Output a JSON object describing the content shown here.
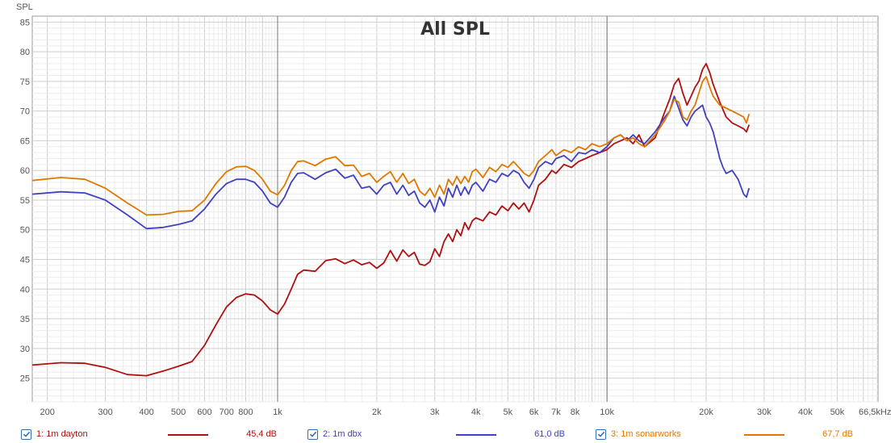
{
  "chart_data": {
    "type": "line",
    "title": "All SPL",
    "ylabel": "SPL",
    "x_unit_label": "66,5kHz",
    "x_scale": "log",
    "xlim": [
      180,
      66500
    ],
    "ylim": [
      21,
      86
    ],
    "grid": true,
    "y_ticks": [
      25,
      30,
      35,
      40,
      45,
      50,
      55,
      60,
      65,
      70,
      75,
      80,
      85
    ],
    "x_ticks": [
      {
        "v": 200,
        "label": "200"
      },
      {
        "v": 300,
        "label": "300"
      },
      {
        "v": 400,
        "label": "400"
      },
      {
        "v": 500,
        "label": "500"
      },
      {
        "v": 600,
        "label": "600"
      },
      {
        "v": 700,
        "label": "700"
      },
      {
        "v": 800,
        "label": "800"
      },
      {
        "v": 1000,
        "label": "1k"
      },
      {
        "v": 2000,
        "label": "2k"
      },
      {
        "v": 3000,
        "label": "3k"
      },
      {
        "v": 4000,
        "label": "4k"
      },
      {
        "v": 5000,
        "label": "5k"
      },
      {
        "v": 6000,
        "label": "6k"
      },
      {
        "v": 7000,
        "label": "7k"
      },
      {
        "v": 8000,
        "label": "8k"
      },
      {
        "v": 10000,
        "label": "10k"
      },
      {
        "v": 20000,
        "label": "20k"
      },
      {
        "v": 30000,
        "label": "30k"
      },
      {
        "v": 40000,
        "label": "40k"
      },
      {
        "v": 50000,
        "label": "50k"
      }
    ],
    "series": [
      {
        "name": "1: 1m dayton",
        "color": "#b01010",
        "value_label": "45,4 dB",
        "points": [
          [
            180,
            27.2
          ],
          [
            220,
            27.6
          ],
          [
            260,
            27.5
          ],
          [
            300,
            26.8
          ],
          [
            350,
            25.6
          ],
          [
            400,
            25.4
          ],
          [
            450,
            26.2
          ],
          [
            500,
            27.0
          ],
          [
            550,
            27.8
          ],
          [
            600,
            30.5
          ],
          [
            650,
            34
          ],
          [
            700,
            37
          ],
          [
            750,
            38.6
          ],
          [
            800,
            39.2
          ],
          [
            850,
            39.0
          ],
          [
            900,
            38
          ],
          [
            950,
            36.5
          ],
          [
            1000,
            35.8
          ],
          [
            1050,
            37.5
          ],
          [
            1100,
            40
          ],
          [
            1150,
            42.5
          ],
          [
            1200,
            43.2
          ],
          [
            1300,
            43.0
          ],
          [
            1400,
            44.8
          ],
          [
            1500,
            45.1
          ],
          [
            1600,
            44.3
          ],
          [
            1700,
            44.9
          ],
          [
            1800,
            44.1
          ],
          [
            1900,
            44.5
          ],
          [
            2000,
            43.5
          ],
          [
            2100,
            44.4
          ],
          [
            2200,
            46.5
          ],
          [
            2300,
            44.7
          ],
          [
            2400,
            46.6
          ],
          [
            2500,
            45.5
          ],
          [
            2600,
            46.2
          ],
          [
            2700,
            44.2
          ],
          [
            2800,
            44.0
          ],
          [
            2900,
            44.6
          ],
          [
            3000,
            46.8
          ],
          [
            3100,
            45.5
          ],
          [
            3200,
            48.0
          ],
          [
            3300,
            49.3
          ],
          [
            3400,
            48.0
          ],
          [
            3500,
            50.0
          ],
          [
            3600,
            49.0
          ],
          [
            3700,
            51.2
          ],
          [
            3800,
            50.0
          ],
          [
            3900,
            51.5
          ],
          [
            4000,
            52.0
          ],
          [
            4200,
            51.5
          ],
          [
            4400,
            53.0
          ],
          [
            4600,
            52.5
          ],
          [
            4800,
            54.0
          ],
          [
            5000,
            53.2
          ],
          [
            5200,
            54.5
          ],
          [
            5400,
            53.5
          ],
          [
            5600,
            54.5
          ],
          [
            5800,
            53.0
          ],
          [
            6000,
            55.0
          ],
          [
            6200,
            57.5
          ],
          [
            6500,
            58.5
          ],
          [
            6800,
            60.0
          ],
          [
            7000,
            59.5
          ],
          [
            7400,
            61.0
          ],
          [
            7800,
            60.5
          ],
          [
            8200,
            61.5
          ],
          [
            8600,
            62.0
          ],
          [
            9000,
            62.5
          ],
          [
            9500,
            63.0
          ],
          [
            10000,
            63.5
          ],
          [
            10500,
            64.5
          ],
          [
            11000,
            65.0
          ],
          [
            11500,
            65.5
          ],
          [
            12000,
            64.5
          ],
          [
            12500,
            66.0
          ],
          [
            13000,
            64.0
          ],
          [
            14000,
            65.5
          ],
          [
            15000,
            70.0
          ],
          [
            15500,
            72.0
          ],
          [
            16000,
            74.5
          ],
          [
            16500,
            75.5
          ],
          [
            17000,
            73.0
          ],
          [
            17500,
            71.0
          ],
          [
            18000,
            72.5
          ],
          [
            18500,
            74.0
          ],
          [
            19000,
            75.0
          ],
          [
            19500,
            77.0
          ],
          [
            20000,
            78.0
          ],
          [
            20500,
            76.5
          ],
          [
            21000,
            74.5
          ],
          [
            22000,
            71.5
          ],
          [
            23000,
            69.0
          ],
          [
            24000,
            68.0
          ],
          [
            25000,
            67.5
          ],
          [
            26000,
            67.0
          ],
          [
            26500,
            66.5
          ],
          [
            27000,
            67.7
          ]
        ]
      },
      {
        "name": "2: 1m dbx",
        "color": "#4040c0",
        "value_label": "61,0 dB",
        "points": [
          [
            180,
            56.0
          ],
          [
            220,
            56.4
          ],
          [
            260,
            56.2
          ],
          [
            300,
            55.0
          ],
          [
            350,
            52.5
          ],
          [
            400,
            50.2
          ],
          [
            450,
            50.4
          ],
          [
            500,
            50.9
          ],
          [
            550,
            51.5
          ],
          [
            600,
            53.5
          ],
          [
            650,
            56
          ],
          [
            700,
            57.8
          ],
          [
            750,
            58.5
          ],
          [
            800,
            58.5
          ],
          [
            850,
            58.0
          ],
          [
            900,
            56.5
          ],
          [
            950,
            54.5
          ],
          [
            1000,
            53.8
          ],
          [
            1050,
            55.5
          ],
          [
            1100,
            58.0
          ],
          [
            1150,
            59.5
          ],
          [
            1200,
            59.6
          ],
          [
            1300,
            58.5
          ],
          [
            1400,
            59.6
          ],
          [
            1500,
            60.2
          ],
          [
            1600,
            58.7
          ],
          [
            1700,
            59.2
          ],
          [
            1800,
            57.0
          ],
          [
            1900,
            57.3
          ],
          [
            2000,
            56.0
          ],
          [
            2100,
            57.5
          ],
          [
            2200,
            58.0
          ],
          [
            2300,
            56.0
          ],
          [
            2400,
            57.5
          ],
          [
            2500,
            55.8
          ],
          [
            2600,
            56.5
          ],
          [
            2700,
            54.5
          ],
          [
            2800,
            53.8
          ],
          [
            2900,
            55.0
          ],
          [
            3000,
            53.0
          ],
          [
            3100,
            55.5
          ],
          [
            3200,
            54.0
          ],
          [
            3300,
            57.0
          ],
          [
            3400,
            55.5
          ],
          [
            3500,
            57.5
          ],
          [
            3600,
            55.8
          ],
          [
            3700,
            57.2
          ],
          [
            3800,
            56.0
          ],
          [
            3900,
            57.5
          ],
          [
            4000,
            58.0
          ],
          [
            4200,
            56.5
          ],
          [
            4400,
            58.5
          ],
          [
            4600,
            58.0
          ],
          [
            4800,
            59.5
          ],
          [
            5000,
            59.0
          ],
          [
            5200,
            60.0
          ],
          [
            5400,
            59.5
          ],
          [
            5600,
            58.0
          ],
          [
            5800,
            57.0
          ],
          [
            6000,
            58.5
          ],
          [
            6200,
            60.5
          ],
          [
            6500,
            61.5
          ],
          [
            6800,
            61.0
          ],
          [
            7000,
            62.0
          ],
          [
            7400,
            62.5
          ],
          [
            7800,
            61.5
          ],
          [
            8200,
            63.0
          ],
          [
            8600,
            62.8
          ],
          [
            9000,
            63.5
          ],
          [
            9500,
            63.0
          ],
          [
            10000,
            64.0
          ],
          [
            10500,
            65.5
          ],
          [
            11000,
            66.0
          ],
          [
            11500,
            65.0
          ],
          [
            12000,
            66.0
          ],
          [
            12500,
            65.0
          ],
          [
            13000,
            64.5
          ],
          [
            14000,
            66.5
          ],
          [
            15000,
            69.0
          ],
          [
            15500,
            70.0
          ],
          [
            16000,
            72.5
          ],
          [
            16500,
            70.5
          ],
          [
            17000,
            68.5
          ],
          [
            17500,
            67.5
          ],
          [
            18000,
            69.0
          ],
          [
            18500,
            70.0
          ],
          [
            19000,
            70.5
          ],
          [
            19500,
            71.0
          ],
          [
            20000,
            69.0
          ],
          [
            20500,
            68.0
          ],
          [
            21000,
            66.5
          ],
          [
            22000,
            62.0
          ],
          [
            22500,
            60.5
          ],
          [
            23000,
            59.5
          ],
          [
            24000,
            60.0
          ],
          [
            25000,
            58.5
          ],
          [
            26000,
            56.0
          ],
          [
            26500,
            55.5
          ],
          [
            27000,
            57.0
          ]
        ]
      },
      {
        "name": "3: 1m sonarworks",
        "color": "#e07800",
        "value_label": "67,7 dB",
        "points": [
          [
            180,
            58.3
          ],
          [
            220,
            58.8
          ],
          [
            260,
            58.5
          ],
          [
            300,
            57.0
          ],
          [
            350,
            54.5
          ],
          [
            400,
            52.5
          ],
          [
            450,
            52.6
          ],
          [
            500,
            53.1
          ],
          [
            550,
            53.2
          ],
          [
            600,
            55.0
          ],
          [
            650,
            57.8
          ],
          [
            700,
            59.8
          ],
          [
            750,
            60.6
          ],
          [
            800,
            60.7
          ],
          [
            850,
            60.0
          ],
          [
            900,
            58.5
          ],
          [
            950,
            56.5
          ],
          [
            1000,
            55.9
          ],
          [
            1050,
            57.5
          ],
          [
            1100,
            60.0
          ],
          [
            1150,
            61.5
          ],
          [
            1200,
            61.6
          ],
          [
            1300,
            60.8
          ],
          [
            1400,
            61.9
          ],
          [
            1500,
            62.3
          ],
          [
            1600,
            60.8
          ],
          [
            1700,
            60.9
          ],
          [
            1800,
            59.0
          ],
          [
            1900,
            59.5
          ],
          [
            2000,
            58.0
          ],
          [
            2100,
            59.0
          ],
          [
            2200,
            59.8
          ],
          [
            2300,
            58.0
          ],
          [
            2400,
            59.5
          ],
          [
            2500,
            57.8
          ],
          [
            2600,
            58.5
          ],
          [
            2700,
            56.5
          ],
          [
            2800,
            55.8
          ],
          [
            2900,
            57.0
          ],
          [
            3000,
            55.5
          ],
          [
            3100,
            57.5
          ],
          [
            3200,
            56.0
          ],
          [
            3300,
            58.5
          ],
          [
            3400,
            57.5
          ],
          [
            3500,
            59.0
          ],
          [
            3600,
            57.8
          ],
          [
            3700,
            59.0
          ],
          [
            3800,
            58.0
          ],
          [
            3900,
            59.8
          ],
          [
            4000,
            60.2
          ],
          [
            4200,
            58.8
          ],
          [
            4400,
            60.5
          ],
          [
            4600,
            59.8
          ],
          [
            4800,
            61.0
          ],
          [
            5000,
            60.5
          ],
          [
            5200,
            61.5
          ],
          [
            5400,
            60.5
          ],
          [
            5600,
            59.5
          ],
          [
            5800,
            59.0
          ],
          [
            6000,
            60.0
          ],
          [
            6200,
            61.5
          ],
          [
            6500,
            62.5
          ],
          [
            6800,
            63.5
          ],
          [
            7000,
            62.5
          ],
          [
            7400,
            63.5
          ],
          [
            7800,
            63.0
          ],
          [
            8200,
            64.0
          ],
          [
            8600,
            63.5
          ],
          [
            9000,
            64.5
          ],
          [
            9500,
            64.0
          ],
          [
            10000,
            64.5
          ],
          [
            10500,
            65.5
          ],
          [
            11000,
            66.0
          ],
          [
            11500,
            65.0
          ],
          [
            12000,
            65.5
          ],
          [
            12500,
            64.5
          ],
          [
            13000,
            64.0
          ],
          [
            14000,
            66.0
          ],
          [
            15000,
            68.5
          ],
          [
            15500,
            70.0
          ],
          [
            16000,
            72.0
          ],
          [
            16500,
            71.5
          ],
          [
            17000,
            69.0
          ],
          [
            17500,
            68.5
          ],
          [
            18000,
            70.0
          ],
          [
            18500,
            71.0
          ],
          [
            19000,
            73.0
          ],
          [
            19500,
            75.0
          ],
          [
            20000,
            75.8
          ],
          [
            20500,
            74.0
          ],
          [
            21000,
            72.5
          ],
          [
            22000,
            71.0
          ],
          [
            23000,
            70.5
          ],
          [
            24000,
            70.0
          ],
          [
            25000,
            69.5
          ],
          [
            26000,
            69.0
          ],
          [
            26500,
            68.0
          ],
          [
            27000,
            69.5
          ]
        ]
      }
    ]
  },
  "legend": [
    {
      "checked": true
    },
    {
      "checked": true
    },
    {
      "checked": true
    }
  ]
}
